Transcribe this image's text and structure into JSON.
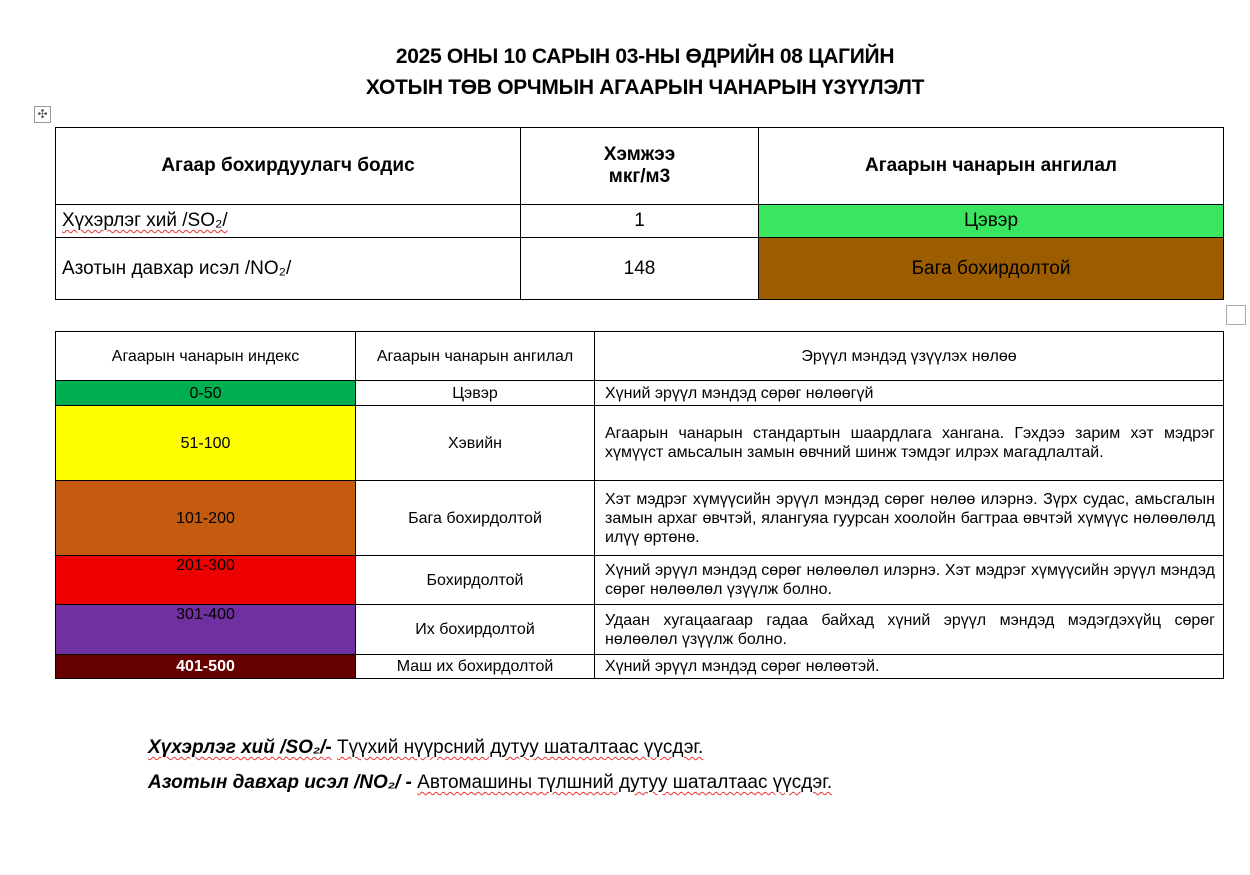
{
  "title": {
    "line1": "2025 ОНЫ 10 САРЫН 03-НЫ ӨДРИЙН 08 ЦАГИЙН",
    "line2": "ХОТЫН ТӨВ ОРЧМЫН АГААРЫН ЧАНАРЫН ҮЗҮҮЛЭЛТ"
  },
  "measurements": {
    "headers": {
      "pollutant": "Агаар бохирдуулагч бодис",
      "amount_line1": "Хэмжээ",
      "amount_line2": "мкг/м3",
      "category": "Агаарын чанарын ангилал"
    },
    "rows": [
      {
        "pollutant": "Хүхэрлэг хий /SO₂/",
        "amount": "1",
        "category": "Цэвэр",
        "color": "#3ae65f"
      },
      {
        "pollutant": "Азотын давхар исэл /NO₂/",
        "amount": "148",
        "category": "Бага бохирдолтой",
        "color": "#9c5c00"
      }
    ]
  },
  "index_table": {
    "headers": {
      "index": "Агаарын чанарын индекс",
      "category": "Агаарын чанарын ангилал",
      "effect": "Эрүүл мэндэд үзүүлэх нөлөө"
    },
    "rows": [
      {
        "range": "0-50",
        "category": "Цэвэр",
        "effect": "Хүний эрүүл мэндэд сөрөг нөлөөгүй",
        "color": "#00b050",
        "text_color": "#000"
      },
      {
        "range": "51-100",
        "category": "Хэвийн",
        "effect": "Агаарын чанарын стандартын шаардлага хангана. Гэхдээ зарим хэт мэдрэг хүмүүст амьсалын замын өвчний шинж тэмдэг илрэх магадлалтай.",
        "color": "#ffff00",
        "text_color": "#000"
      },
      {
        "range": "101-200",
        "category": "Бага бохирдолтой",
        "effect": "Хэт мэдрэг хүмүүсийн эрүүл мэндэд сөрөг нөлөө илэрнэ. Зүрх судас, амьсгалын замын архаг өвчтэй, ялангуяа гуурсан хоолойн багтраа өвчтэй хүмүүс нөлөөлөлд илүү өртөнө.",
        "color": "#c55a11",
        "text_color": "#000"
      },
      {
        "range": "201-300",
        "category": "Бохирдолтой",
        "effect": "Хүний эрүүл мэндэд сөрөг нөлөөлөл илэрнэ. Хэт мэдрэг хүмүүсийн эрүүл мэндэд сөрөг нөлөөлөл үзүүлж болно.",
        "color": "#ee0000",
        "text_color": "#000"
      },
      {
        "range": "301-400",
        "category": "Их бохирдолтой",
        "effect": "Удаан хугацаагаар гадаа байхад хүний эрүүл мэндэд мэдэгдэхүйц сөрөг нөлөөлөл үзүүлж болно.",
        "color": "#7030a0",
        "text_color": "#000"
      },
      {
        "range": "401-500",
        "category": "Маш их бохирдолтой",
        "effect": "Хүний эрүүл мэндэд сөрөг нөлөөтэй.",
        "color": "#660000",
        "text_color": "#fff"
      }
    ]
  },
  "notes": [
    {
      "term": "Хүхэрлэг хий /SO₂/-",
      "text": "Түүхий нүүрсний дутуу шаталтаас үүсдэг."
    },
    {
      "term": "Азотын давхар исэл /NO₂/ -",
      "text": "Автомашины түлшний дутуу шаталтаас үүсдэг."
    }
  ]
}
